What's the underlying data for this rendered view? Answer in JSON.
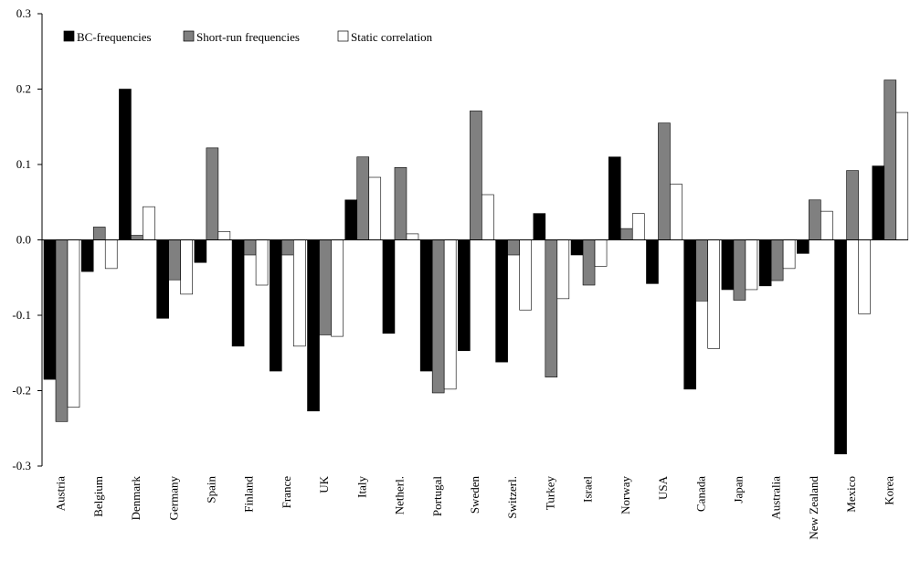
{
  "chart_data": {
    "type": "bar",
    "title": "",
    "xlabel": "",
    "ylabel": "",
    "ylim": [
      -0.3,
      0.3
    ],
    "yticks": [
      -0.3,
      -0.2,
      -0.1,
      0.0,
      0.1,
      0.2,
      0.3
    ],
    "ytick_labels": [
      "-0.3",
      "-0.2",
      "-0.1",
      "0.0",
      "0.1",
      "0.2",
      "0.3"
    ],
    "grid": false,
    "legend_position": "top-left",
    "categories": [
      "Austria",
      "Belgium",
      "Denmark",
      "Germany",
      "Spain",
      "Finland",
      "France",
      "UK",
      "Italy",
      "Netherl.",
      "Portugal",
      "Sweden",
      "Switzerl.",
      "Turkey",
      "Israel",
      "Norway",
      "USA",
      "Canada",
      "Japan",
      "Australia",
      "New Zealand",
      "Mexico",
      "Korea"
    ],
    "series": [
      {
        "name": "BC-frequencies",
        "color": "#000000",
        "values": [
          -0.185,
          -0.042,
          0.2,
          -0.104,
          -0.03,
          -0.141,
          -0.174,
          -0.227,
          0.053,
          -0.124,
          -0.174,
          -0.147,
          -0.162,
          0.035,
          -0.02,
          0.11,
          -0.058,
          -0.198,
          -0.066,
          -0.061,
          -0.018,
          -0.284,
          0.098
        ]
      },
      {
        "name": "Short-run frequencies",
        "color": "#808080",
        "values": [
          -0.241,
          0.017,
          0.006,
          -0.053,
          0.122,
          -0.02,
          -0.02,
          -0.126,
          0.11,
          0.096,
          -0.203,
          0.171,
          -0.02,
          -0.182,
          -0.06,
          0.015,
          0.155,
          -0.081,
          -0.08,
          -0.054,
          0.053,
          0.092,
          0.212
        ]
      },
      {
        "name": "Static correlation",
        "color": "#ffffff",
        "values": [
          -0.222,
          -0.038,
          0.044,
          -0.072,
          0.011,
          -0.06,
          -0.141,
          -0.128,
          0.083,
          0.008,
          -0.198,
          0.06,
          -0.093,
          -0.078,
          -0.035,
          0.035,
          0.074,
          -0.144,
          -0.066,
          -0.038,
          0.038,
          -0.098,
          0.169
        ]
      }
    ]
  }
}
